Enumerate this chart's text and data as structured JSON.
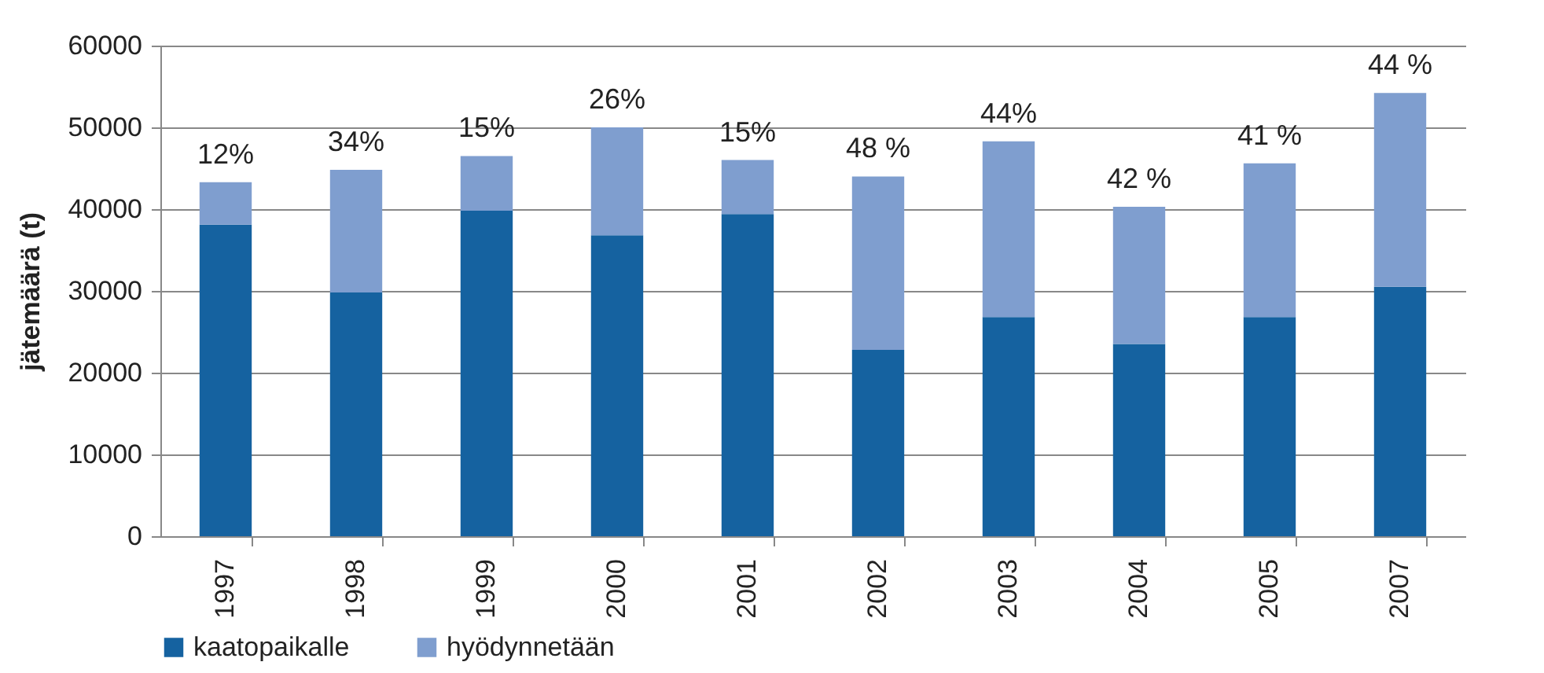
{
  "chart_data": {
    "type": "bar",
    "stacked": true,
    "ylabel": "jätemäärä (t)",
    "categories": [
      "1997",
      "1998",
      "1999",
      "2000",
      "2001",
      "2002",
      "2003",
      "2004",
      "2005",
      "2007"
    ],
    "series": [
      {
        "name": "kaatopaikalle",
        "color": "#1562a0",
        "values": [
          38100,
          29800,
          39800,
          36800,
          39400,
          22800,
          26800,
          23500,
          26800,
          30500
        ]
      },
      {
        "name": "hyödynnetään",
        "color": "#7f9ecf",
        "values": [
          5200,
          15000,
          6700,
          13200,
          6600,
          21200,
          21500,
          16800,
          18800,
          23700
        ]
      }
    ],
    "ylim": [
      0,
      60000
    ],
    "yticks": [
      0,
      10000,
      20000,
      30000,
      40000,
      50000,
      60000
    ],
    "grid": "y",
    "legend": "bottom",
    "annotations": [
      {
        "text": "12%",
        "x": "1997",
        "y": 43300
      },
      {
        "text": "34%",
        "x": "1998",
        "y": 44800
      },
      {
        "text": "15%",
        "x": "1999",
        "y": 46500
      },
      {
        "text": "26%",
        "x": "2000",
        "y": 50000
      },
      {
        "text": "15%",
        "x": "2001",
        "y": 46000
      },
      {
        "text": "48 %",
        "x": "2002",
        "y": 44000
      },
      {
        "text": "44%",
        "x": "2003",
        "y": 48300
      },
      {
        "text": "42 %",
        "x": "2004",
        "y": 40300
      },
      {
        "text": "41 %",
        "x": "2005",
        "y": 45600
      },
      {
        "text": "44 %",
        "x": "2007",
        "y": 54200
      }
    ]
  }
}
